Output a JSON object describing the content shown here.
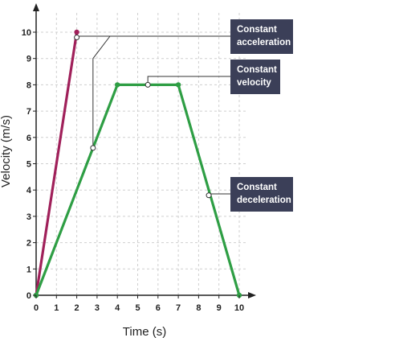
{
  "chart_data": {
    "type": "line",
    "xlabel": "Time (s)",
    "ylabel": "Velocity (m/s)",
    "xlim": [
      0,
      10
    ],
    "ylim": [
      0,
      10
    ],
    "x_ticks": [
      "0",
      "1",
      "2",
      "3",
      "4",
      "5",
      "6",
      "7",
      "8",
      "9",
      "10"
    ],
    "y_ticks": [
      "0",
      "1",
      "2",
      "3",
      "4",
      "5",
      "6",
      "7",
      "8",
      "9",
      "10"
    ],
    "grid": true,
    "series": [
      {
        "color": "#a0205a",
        "points": [
          [
            0,
            0
          ],
          [
            2,
            10
          ]
        ]
      },
      {
        "color": "#2e9e44",
        "points": [
          [
            0,
            0
          ],
          [
            4,
            8
          ],
          [
            7,
            8
          ],
          [
            10,
            0
          ]
        ]
      }
    ],
    "annotations": [
      {
        "lines": [
          "Constant",
          "acceleration"
        ],
        "point": [
          2,
          9.8
        ]
      },
      {
        "lines": [
          "Constant",
          "velocity"
        ],
        "point": [
          5.5,
          8
        ]
      },
      {
        "lines": [
          "Constant",
          "deceleration"
        ],
        "point": [
          8.5,
          3.8
        ]
      }
    ],
    "secondary_annotation_point": [
      2.8,
      5.6
    ],
    "annotation_box_color": "#3b3f58"
  }
}
